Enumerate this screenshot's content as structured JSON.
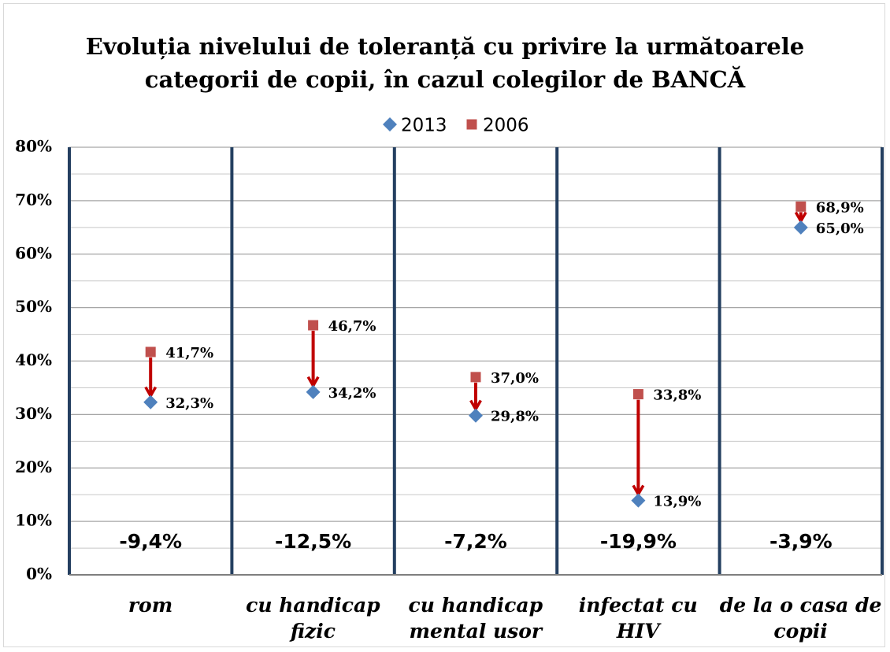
{
  "chart_data": {
    "type": "scatter",
    "title": "Evoluția nivelului de toleranță cu privire la următoarele\ncategorii de copii, în cazul colegilor de BANCĂ",
    "categories": [
      "rom",
      "cu handicap\nfizic",
      "cu handicap\nmental usor",
      "infectat cu HIV",
      "de la o casa de\ncopii"
    ],
    "series": [
      {
        "name": "2013",
        "color": "#4f81bd",
        "marker": "diamond",
        "values": [
          32.3,
          34.2,
          29.8,
          13.9,
          65.0
        ],
        "value_labels": [
          "32,3%",
          "34,2%",
          "29,8%",
          "13,9%",
          "65,0%"
        ]
      },
      {
        "name": "2006",
        "color": "#c0504d",
        "marker": "square",
        "values": [
          41.7,
          46.7,
          37.0,
          33.8,
          68.9
        ],
        "value_labels": [
          "41,7%",
          "46,7%",
          "37,0%",
          "33,8%",
          "68,9%"
        ]
      }
    ],
    "difference_labels": [
      "-9,4%",
      "-12,5%",
      "-7,2%",
      "-19,9%",
      "-3,9%"
    ],
    "arrow_color": "#c00000",
    "ylim": [
      0,
      80
    ],
    "yticks": [
      {
        "value": 0,
        "label": "0%"
      },
      {
        "value": 10,
        "label": "10%"
      },
      {
        "value": 20,
        "label": "20%"
      },
      {
        "value": 30,
        "label": "30%"
      },
      {
        "value": 40,
        "label": "40%"
      },
      {
        "value": 50,
        "label": "50%"
      },
      {
        "value": 60,
        "label": "60%"
      },
      {
        "value": 70,
        "label": "70%"
      },
      {
        "value": 80,
        "label": "80%"
      }
    ],
    "minor_yticks": [
      5,
      15,
      25,
      35,
      45,
      55,
      65,
      75
    ],
    "grid": true,
    "legend": "top"
  }
}
